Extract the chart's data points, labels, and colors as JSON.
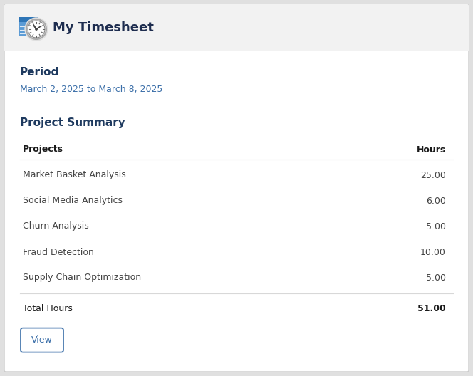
{
  "header_bg": "#f2f2f2",
  "header_title": "My Timesheet",
  "header_title_color": "#1e2d4f",
  "period_label": "Period",
  "period_label_color": "#1e3a5f",
  "period_date": "March 2, 2025 to March 8, 2025",
  "period_date_color": "#3a6ea8",
  "summary_title": "Project Summary",
  "summary_title_color": "#1e3a5f",
  "col_projects": "Projects",
  "col_hours": "Hours",
  "col_header_color": "#1a1a1a",
  "projects": [
    "Market Basket Analysis",
    "Social Media Analytics",
    "Churn Analysis",
    "Fraud Detection",
    "Supply Chain Optimization"
  ],
  "hours": [
    "25.00",
    "6.00",
    "5.00",
    "10.00",
    "5.00"
  ],
  "total_label": "Total Hours",
  "total_hours": "51.00",
  "row_text_color": "#444444",
  "total_text_color": "#1a1a1a",
  "button_label": "View",
  "button_text_color": "#3a6ea8",
  "button_border_color": "#3a6ea8",
  "bg_color": "#ffffff",
  "outer_bg_color": "#e0e0e0",
  "border_color": "#cccccc",
  "separator_color": "#d8d8d8",
  "fig_width": 6.64,
  "fig_height": 5.28,
  "dpi": 100
}
